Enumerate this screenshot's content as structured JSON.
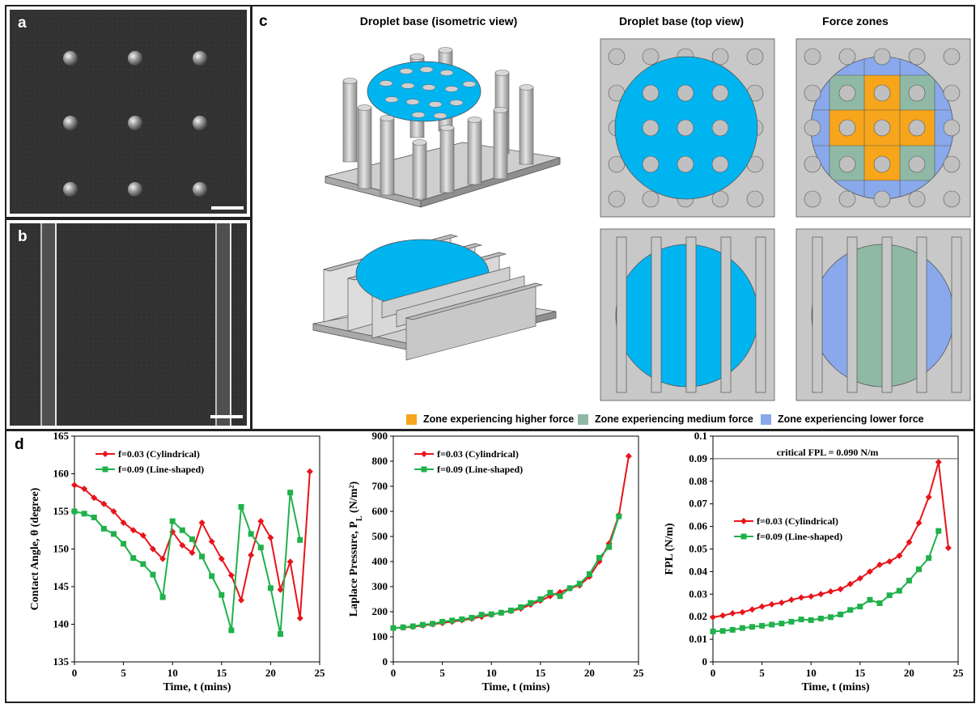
{
  "panels": {
    "a": {
      "letter": "a"
    },
    "b": {
      "letter": "b"
    },
    "c": {
      "letter": "c",
      "column_titles": [
        "Droplet base (isometric view)",
        "Droplet base (top view)",
        "Force zones"
      ],
      "zone_legend": [
        {
          "label": "Zone experiencing higher force",
          "color": "#f7a51a"
        },
        {
          "label": "Zone experiencing medium force",
          "color": "#8fb9a4"
        },
        {
          "label": "Zone experiencing lower force",
          "color": "#89a9ec"
        }
      ]
    },
    "d": {
      "letter": "d"
    }
  },
  "colors": {
    "droplet": "#00b4f0",
    "substrate": "#c8c8c8",
    "pillar": "#c6c6c6",
    "red_series": "#e8141b",
    "green_series": "#20b14b",
    "higher_force": "#f7a51a",
    "medium_force": "#8fb9a4",
    "lower_force": "#89a9ec"
  },
  "chart_data": [
    {
      "type": "line",
      "xlabel": "Time, t (mins)",
      "ylabel": "Contact Angle, θ (degree)",
      "xlim": [
        0,
        25
      ],
      "ylim": [
        135,
        165
      ],
      "xticks": [
        0,
        5,
        10,
        15,
        20,
        25
      ],
      "yticks": [
        135,
        140,
        145,
        150,
        155,
        160,
        165
      ],
      "legend_position": "top-left",
      "series": [
        {
          "name": "f=0.03 (Cylindrical)",
          "color": "#e8141b",
          "marker": "diamond",
          "x": [
            0,
            1,
            2,
            3,
            4,
            5,
            6,
            7,
            8,
            9,
            10,
            11,
            12,
            13,
            14,
            15,
            16,
            17,
            18,
            19,
            20,
            21,
            22,
            23,
            24
          ],
          "y": [
            158.5,
            158.0,
            156.8,
            156.0,
            155.0,
            153.5,
            152.5,
            151.8,
            150.0,
            148.7,
            152.3,
            150.5,
            149.5,
            153.5,
            151.0,
            148.7,
            146.5,
            143.2,
            149.2,
            153.7,
            151.5,
            144.6,
            148.3,
            140.8,
            160.3
          ]
        },
        {
          "name": "f=0.09 (Line-shaped)",
          "color": "#20b14b",
          "marker": "square",
          "x": [
            0,
            1,
            2,
            3,
            4,
            5,
            6,
            7,
            8,
            9,
            10,
            11,
            12,
            13,
            14,
            15,
            16,
            17,
            18,
            19,
            20,
            21,
            22,
            23
          ],
          "y": [
            155.0,
            154.7,
            154.2,
            152.7,
            152.0,
            150.7,
            148.8,
            148.0,
            146.6,
            143.6,
            153.7,
            152.5,
            151.3,
            149.0,
            146.4,
            143.9,
            139.2,
            155.6,
            152.0,
            150.2,
            144.8,
            138.7,
            157.5,
            151.2
          ]
        }
      ]
    },
    {
      "type": "line",
      "xlabel": "Time, t (mins)",
      "ylabel": "Laplace Pressure, P",
      "ylabel_sub": "L",
      "ylabel_unit": " (N/m²)",
      "xlim": [
        0,
        25
      ],
      "ylim": [
        0,
        900
      ],
      "xticks": [
        0,
        5,
        10,
        15,
        20,
        25
      ],
      "yticks": [
        0,
        100,
        200,
        300,
        400,
        500,
        600,
        700,
        800,
        900
      ],
      "legend_position": "top-left",
      "series": [
        {
          "name": "f=0.03 (Cylindrical)",
          "color": "#e8141b",
          "marker": "diamond",
          "x": [
            0,
            1,
            2,
            3,
            4,
            5,
            6,
            7,
            8,
            9,
            10,
            11,
            12,
            13,
            14,
            15,
            16,
            17,
            18,
            19,
            20,
            21,
            22,
            23,
            24
          ],
          "y": [
            135,
            137,
            140,
            145,
            150,
            155,
            160,
            166,
            172,
            180,
            188,
            196,
            203,
            212,
            228,
            244,
            262,
            278,
            293,
            305,
            340,
            400,
            472,
            585,
            820
          ]
        },
        {
          "name": "f=0.09 (Line-shaped)",
          "color": "#20b14b",
          "marker": "square",
          "x": [
            0,
            1,
            2,
            3,
            4,
            5,
            6,
            7,
            8,
            9,
            10,
            11,
            12,
            13,
            14,
            15,
            16,
            17,
            18,
            19,
            20,
            21,
            22,
            23
          ],
          "y": [
            135,
            138,
            142,
            148,
            152,
            160,
            165,
            170,
            176,
            188,
            190,
            196,
            205,
            218,
            235,
            250,
            276,
            262,
            294,
            312,
            350,
            415,
            458,
            580
          ]
        }
      ]
    },
    {
      "type": "line",
      "xlabel": "Time, t (mins)",
      "ylabel": "FPL (N/m)",
      "xlim": [
        0,
        25
      ],
      "ylim": [
        0,
        0.1
      ],
      "xticks": [
        0,
        5,
        10,
        15,
        20,
        25
      ],
      "yticks": [
        0,
        0.01,
        0.02,
        0.03,
        0.04,
        0.05,
        0.06,
        0.07,
        0.08,
        0.09,
        0.1
      ],
      "ytick_labels": [
        "0",
        "0.01",
        "0.02",
        "0.03",
        "0.04",
        "0.05",
        "0.06",
        "0.07",
        "0.08",
        "0.09",
        "0.1"
      ],
      "legend_position": "middle-left",
      "annotation": {
        "text": "critical FPL = 0.090 N/m",
        "y": 0.09
      },
      "series": [
        {
          "name": "f=0.03 (Cylindrical)",
          "color": "#e8141b",
          "marker": "diamond",
          "x": [
            0,
            1,
            2,
            3,
            4,
            5,
            6,
            7,
            8,
            9,
            10,
            11,
            12,
            13,
            14,
            15,
            16,
            17,
            18,
            19,
            20,
            21,
            22,
            23,
            24
          ],
          "y": [
            0.0198,
            0.0205,
            0.0215,
            0.022,
            0.0232,
            0.0245,
            0.0255,
            0.0262,
            0.0275,
            0.0285,
            0.029,
            0.03,
            0.0312,
            0.0322,
            0.0345,
            0.037,
            0.04,
            0.043,
            0.0445,
            0.047,
            0.053,
            0.0615,
            0.073,
            0.0885,
            0.0505
          ]
        },
        {
          "name": "f=0.09 (Line-shaped)",
          "color": "#20b14b",
          "marker": "square",
          "x": [
            0,
            1,
            2,
            3,
            4,
            5,
            6,
            7,
            8,
            9,
            10,
            11,
            12,
            13,
            14,
            15,
            16,
            17,
            18,
            19,
            20,
            21,
            22,
            23
          ],
          "y": [
            0.0135,
            0.0137,
            0.0142,
            0.015,
            0.0155,
            0.016,
            0.0165,
            0.017,
            0.0178,
            0.0188,
            0.0185,
            0.0192,
            0.0198,
            0.021,
            0.023,
            0.0245,
            0.0275,
            0.026,
            0.0295,
            0.0315,
            0.036,
            0.041,
            0.046,
            0.058
          ]
        }
      ]
    }
  ]
}
